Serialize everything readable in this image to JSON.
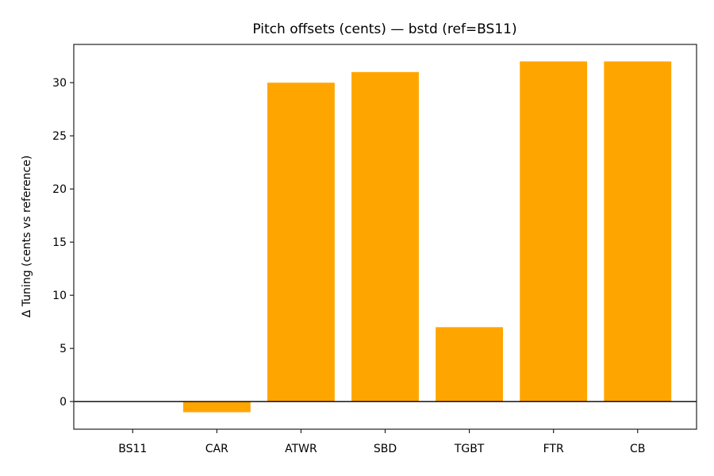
{
  "chart_data": {
    "type": "bar",
    "title": "Pitch offsets (cents) — bstd (ref=BS11)",
    "xlabel": "",
    "ylabel": "Δ Tuning (cents vs reference)",
    "categories": [
      "BS11",
      "CAR",
      "ATWR",
      "SBD",
      "TGBT",
      "FTR",
      "CB"
    ],
    "values": [
      0,
      -1,
      30,
      31,
      7,
      32,
      32
    ],
    "ylim": [
      -2.6,
      33.6
    ],
    "yticks": [
      0,
      5,
      10,
      15,
      20,
      25,
      30
    ],
    "grid": false,
    "legend": null,
    "bar_color": "#FFA500",
    "zero_line": true,
    "zero_line_color": "#000000"
  }
}
